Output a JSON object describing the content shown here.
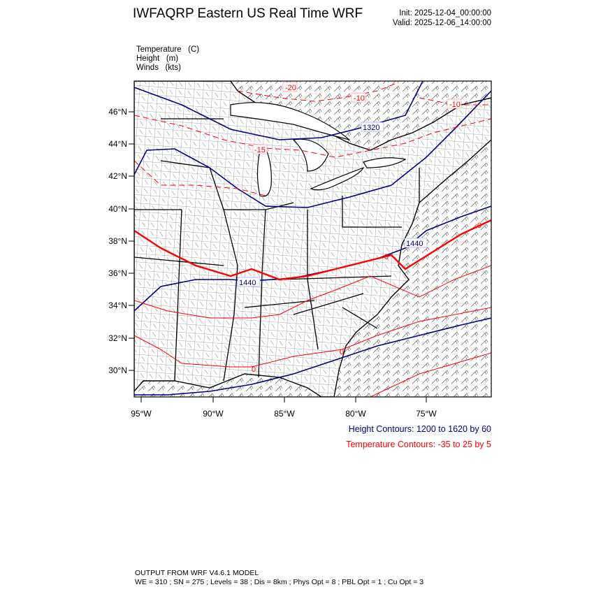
{
  "header": {
    "title": "IWFAQRP Eastern US Real Time WRF",
    "init": "Init: 2025-12-04_00:00:00",
    "valid": "Valid: 2025-12-06_14:00:00"
  },
  "fields": [
    {
      "name": "Temperature",
      "unit": "(C)"
    },
    {
      "name": "Height",
      "unit": "(m)"
    },
    {
      "name": "Winds",
      "unit": "(kts)"
    }
  ],
  "map": {
    "lat_ticks": [
      "46°N",
      "44°N",
      "42°N",
      "40°N",
      "38°N",
      "36°N",
      "34°N",
      "32°N",
      "30°N"
    ],
    "lon_ticks": [
      "95°W",
      "90°W",
      "85°W",
      "80°W",
      "75°W"
    ],
    "height_color": "#000080",
    "temperature_color": "#ff0000",
    "contour_labels": {
      "t1": "-20",
      "t2": "-10",
      "t3": "-10",
      "t4": "-15",
      "h1": "1320",
      "h2": "1440",
      "h3": "1440",
      "t5": "0",
      "t6": "0",
      "t7": "0",
      "t8": "0"
    }
  },
  "legend": {
    "height": "Height Contours: 1200 to 1620 by 60",
    "temperature": "Temperature Contours: -35 to 25 by 5"
  },
  "footer": {
    "line1": "OUTPUT FROM WRF V4.6.1 MODEL",
    "line2": "WE = 310 ; SN = 275 ; Levels = 38 ; Dis = 8km ; Phys Opt = 8 ; PBL Opt = 1 ; Cu Opt = 3"
  }
}
